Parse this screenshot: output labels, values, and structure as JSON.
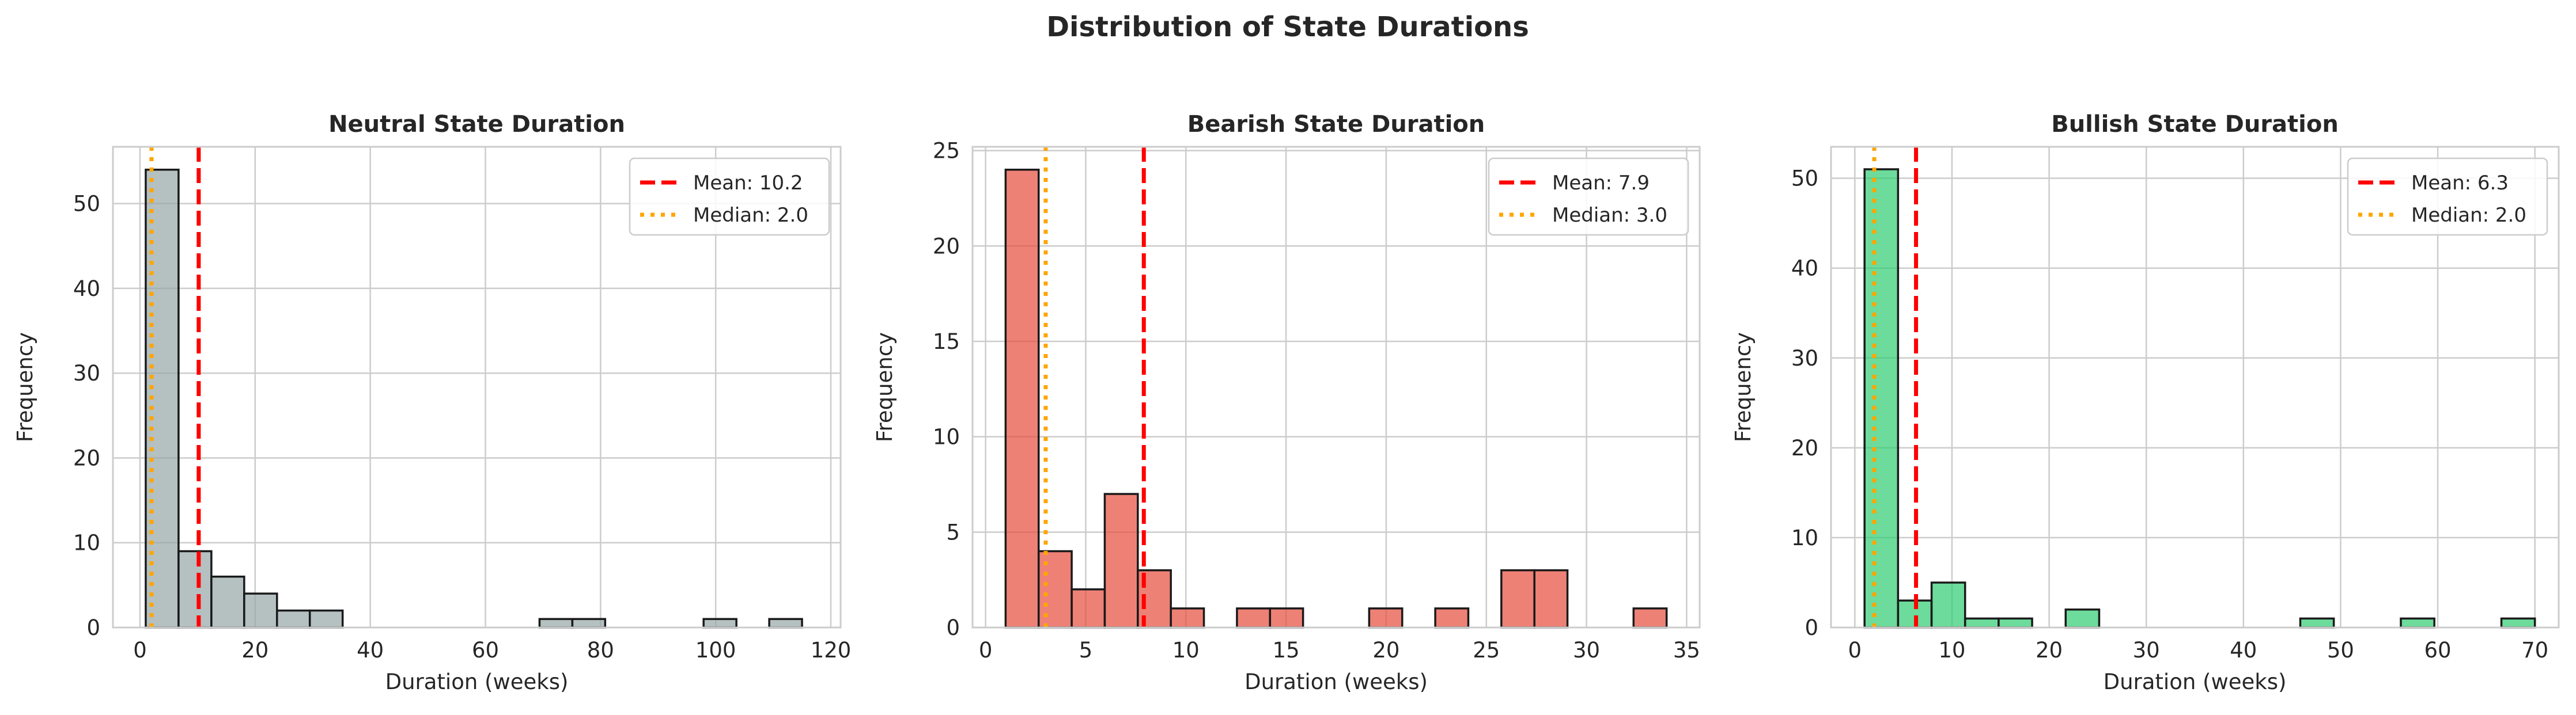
{
  "figure": {
    "title": "Distribution of State Durations"
  },
  "colors": {
    "mean_line": "#ff0000",
    "median_line": "#ffa500",
    "grid": "#cccccc",
    "axes_edge": "#cccccc",
    "bar_edge": "#1a1a1a"
  },
  "chart_data": [
    {
      "type": "bar",
      "title": "Neutral State Duration",
      "xlabel": "Duration (weeks)",
      "ylabel": "Frequency",
      "xlim": [
        -4.7,
        121.7
      ],
      "ylim": [
        0,
        56.7
      ],
      "xticks": [
        0,
        20,
        40,
        60,
        80,
        100,
        120
      ],
      "yticks": [
        0,
        10,
        20,
        30,
        40,
        50
      ],
      "bar_color": "#95a5a6",
      "bin_edges": [
        1,
        6.7,
        12.4,
        18.1,
        23.8,
        29.5,
        35.2,
        40.9,
        46.6,
        52.3,
        58.0,
        63.7,
        69.4,
        75.1,
        80.8,
        86.5,
        92.2,
        97.9,
        103.6,
        109.3,
        115.0
      ],
      "counts": [
        54,
        9,
        6,
        4,
        2,
        2,
        0,
        0,
        0,
        0,
        0,
        0,
        1,
        1,
        0,
        0,
        0,
        1,
        0,
        1
      ],
      "mean": 10.2,
      "median": 2.0,
      "legend": {
        "position": "top-right",
        "mean_label": "Mean: 10.2",
        "median_label": "Median: 2.0"
      },
      "grid": true
    },
    {
      "type": "bar",
      "title": "Bearish State Duration",
      "xlabel": "Duration (weeks)",
      "ylabel": "Frequency",
      "xlim": [
        -0.65,
        35.65
      ],
      "ylim": [
        0,
        25.2
      ],
      "xticks": [
        0,
        5,
        10,
        15,
        20,
        25,
        30,
        35
      ],
      "yticks": [
        0,
        5,
        10,
        15,
        20,
        25
      ],
      "bar_color": "#e74c3c",
      "bin_edges": [
        1,
        2.65,
        4.3,
        5.95,
        7.6,
        9.25,
        10.9,
        12.55,
        14.2,
        15.85,
        17.5,
        19.15,
        20.8,
        22.45,
        24.1,
        25.75,
        27.4,
        29.05,
        30.7,
        32.35,
        34.0
      ],
      "counts": [
        24,
        4,
        2,
        7,
        3,
        1,
        0,
        1,
        1,
        0,
        0,
        1,
        0,
        1,
        0,
        3,
        3,
        0,
        0,
        1
      ],
      "mean": 7.9,
      "median": 3.0,
      "legend": {
        "position": "top-right",
        "mean_label": "Mean: 7.9",
        "median_label": "Median: 3.0"
      },
      "grid": true
    },
    {
      "type": "bar",
      "title": "Bullish State Duration",
      "xlabel": "Duration (weeks)",
      "ylabel": "Frequency",
      "xlim": [
        -2.45,
        72.45
      ],
      "ylim": [
        0,
        53.5
      ],
      "xticks": [
        0,
        10,
        20,
        30,
        40,
        50,
        60,
        70
      ],
      "yticks": [
        0,
        10,
        20,
        30,
        40,
        50
      ],
      "bar_color": "#2ecc71",
      "bin_edges": [
        1,
        4.45,
        7.9,
        11.35,
        14.8,
        18.25,
        21.7,
        25.15,
        28.6,
        32.05,
        35.5,
        38.95,
        42.4,
        45.85,
        49.3,
        52.75,
        56.2,
        59.65,
        63.1,
        66.55,
        70.0
      ],
      "counts": [
        51,
        3,
        5,
        1,
        1,
        0,
        2,
        0,
        0,
        0,
        0,
        0,
        0,
        1,
        0,
        0,
        1,
        0,
        0,
        1
      ],
      "mean": 6.3,
      "median": 2.0,
      "legend": {
        "position": "top-right",
        "mean_label": "Mean: 6.3",
        "median_label": "Median: 2.0"
      },
      "grid": true
    }
  ]
}
